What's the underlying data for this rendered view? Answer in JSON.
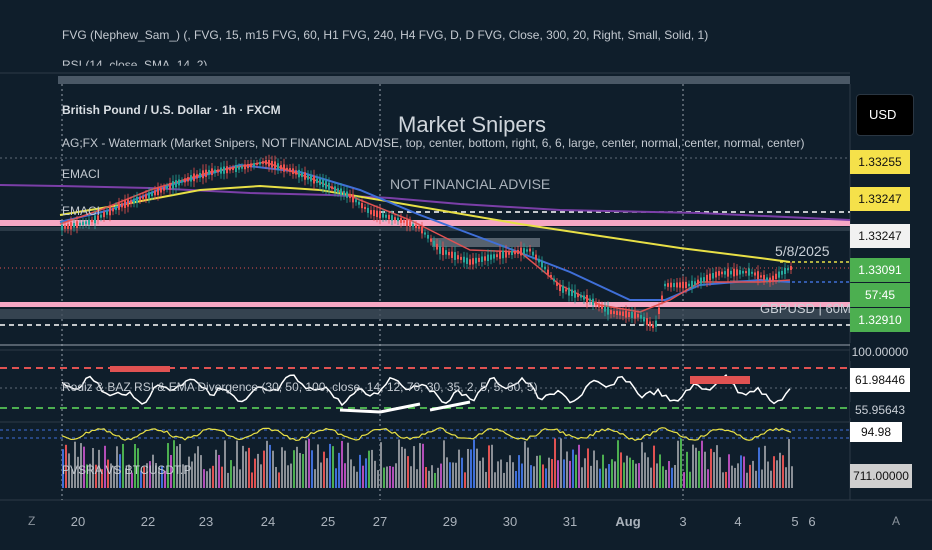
{
  "header": {
    "indicator_fvg": "FVG (Nephew_Sam_) (, FVG, 15, m15 FVG, 60, H1 FVG, 240, H4 FVG, D, D FVG, Close, 300, 20, Right, Small, Solid, 1)",
    "indicator_rsi": "RSI (14, close, SMA, 14, 2)",
    "symbol_line": "British Pound / U.S. Dollar · 1h · FXCM",
    "watermark_indicator": "AG;FX - Watermark (Market Snipers, NOT FINANCIAL ADVISE, top, center, bottom, right, 6, 6, large, center, normal, center, normal, center)"
  },
  "watermark": {
    "title": "Market Snipers",
    "subtitle": "NOT FINANCIAL ADVISE"
  },
  "labels": {
    "emaci_1": "EMACI",
    "emaci_2": "EMACI",
    "date_label": "5/8/2025",
    "pair_label": "GBPUSD | 60M",
    "rsi_div": "Rodiz & BAZ RSI & EMA Divergence (30, 50, 100, close, 14, 12, 70, 30, 35, 2, 5, 5, 60, 5)",
    "pvsra": "PVSRA VS BTCUSDT.P"
  },
  "price_axis": {
    "currency": "USD",
    "tags": [
      {
        "value": "1.33255",
        "bg": "#f5e14a",
        "fg": "#111111"
      },
      {
        "value": "1.33247",
        "bg": "#f5e14a",
        "fg": "#111111"
      },
      {
        "value": "1.33247",
        "bg": "#f1f1f1",
        "fg": "#111111"
      },
      {
        "value": "1.33091",
        "bg": "#4caf50",
        "fg": "#ffffff"
      },
      {
        "value": "57:45",
        "bg": "#4caf50",
        "fg": "#ffffff"
      },
      {
        "value": "1.32910",
        "bg": "#4caf50",
        "fg": "#ffffff"
      }
    ],
    "rsi_tags": [
      {
        "value": "100.00000",
        "bg": "#0f1e2b",
        "fg": "#c9cfd6"
      },
      {
        "value": "61.98446",
        "bg": "#ffffff",
        "fg": "#111111"
      },
      {
        "value": "55.95643",
        "bg": "#0f1e2b",
        "fg": "#c9cfd6"
      },
      {
        "value": "94.98",
        "bg": "#ffffff",
        "fg": "#111111"
      },
      {
        "value": "711.00000",
        "bg": "#cfcfcf",
        "fg": "#111111"
      }
    ]
  },
  "time_axis": {
    "labels": [
      "20",
      "22",
      "23",
      "24",
      "25",
      "27",
      "29",
      "30",
      "31",
      "Aug",
      "3",
      "4",
      "5",
      "6"
    ],
    "left_corner": "Z",
    "right_corner": "A"
  },
  "colors": {
    "background": "#0f1e2b",
    "candle_up": "#26a69a",
    "candle_down": "#ef5350",
    "ema_red": "#e05252",
    "ema_blue": "#3f6fd8",
    "ema_yellow": "#e8e046",
    "ema_purple": "#7b3fa8",
    "zone_pink": "#f7a8c4"
  }
}
